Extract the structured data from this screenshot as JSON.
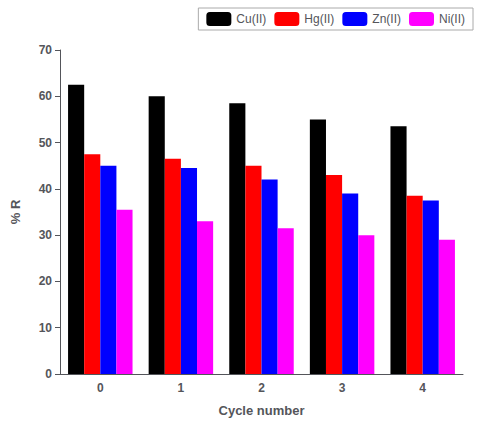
{
  "chart_data": {
    "type": "bar",
    "categories": [
      "0",
      "1",
      "2",
      "3",
      "4"
    ],
    "series": [
      {
        "name": "Cu(II)",
        "color": "#000000",
        "values": [
          62.5,
          60.0,
          58.5,
          55.0,
          53.5
        ]
      },
      {
        "name": "Hg(II)",
        "color": "#ff0000",
        "values": [
          47.5,
          46.5,
          45.0,
          43.0,
          38.5
        ]
      },
      {
        "name": "Zn(II)",
        "color": "#0000ff",
        "values": [
          45.0,
          44.5,
          42.0,
          39.0,
          37.5
        ]
      },
      {
        "name": "Ni(II)",
        "color": "#ff00ff",
        "values": [
          35.5,
          33.0,
          31.5,
          30.0,
          29.0
        ]
      }
    ],
    "xlabel": "Cycle number",
    "ylabel": "% R",
    "ylim": [
      0,
      70
    ],
    "yticks": [
      0,
      10,
      20,
      30,
      40,
      50,
      60,
      70
    ],
    "legend": "upper right",
    "grid": false
  }
}
